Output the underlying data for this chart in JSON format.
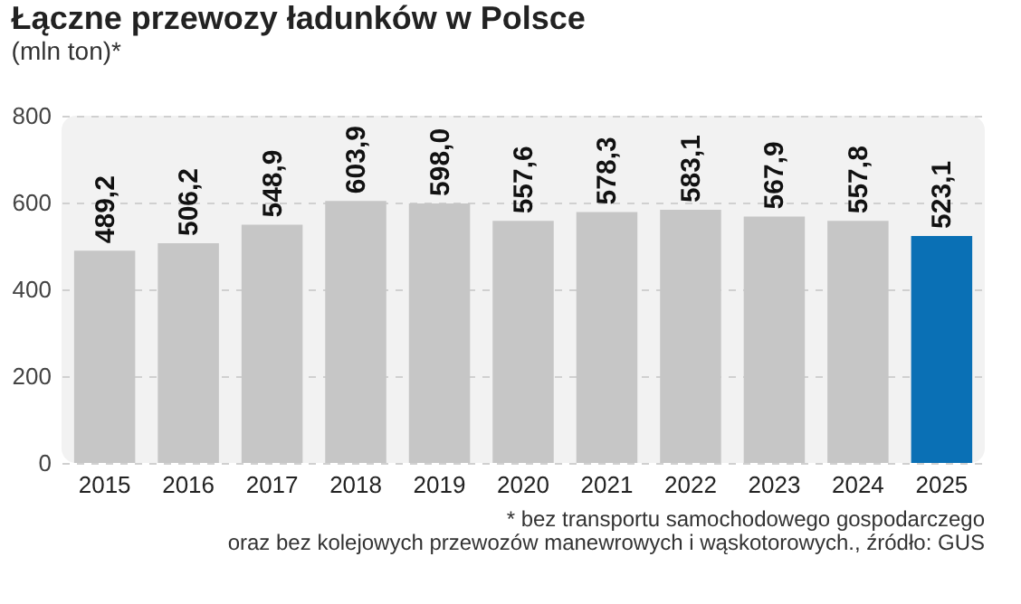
{
  "chart_data": {
    "type": "bar",
    "title": "Łączne przewozy ładunków w Polsce",
    "subtitle": "(mln ton)*",
    "categories": [
      "2015",
      "2016",
      "2017",
      "2018",
      "2019",
      "2020",
      "2021",
      "2022",
      "2023",
      "2024",
      "2025"
    ],
    "values": [
      489.2,
      506.2,
      548.9,
      603.9,
      598.0,
      557.6,
      578.3,
      583.1,
      567.9,
      557.8,
      523.1
    ],
    "colors": [
      "#c6c6c6",
      "#c6c6c6",
      "#c6c6c6",
      "#c6c6c6",
      "#c6c6c6",
      "#c6c6c6",
      "#c6c6c6",
      "#c6c6c6",
      "#c6c6c6",
      "#c6c6c6",
      "#0a70b5"
    ],
    "value_labels": [
      "489,2",
      "506,2",
      "548,9",
      "603,9",
      "598,0",
      "557,6",
      "578,3",
      "583,1",
      "567,9",
      "557,8",
      "523,1"
    ],
    "ylim": [
      0,
      800
    ],
    "yticks": [
      0,
      200,
      400,
      600,
      800
    ],
    "grid": "y",
    "annotations": [
      "* bez transportu samochodowego gospodarczego",
      "oraz bez kolejowych przewozów manewrowych i wąskotorowych., źródło: GUS"
    ]
  }
}
